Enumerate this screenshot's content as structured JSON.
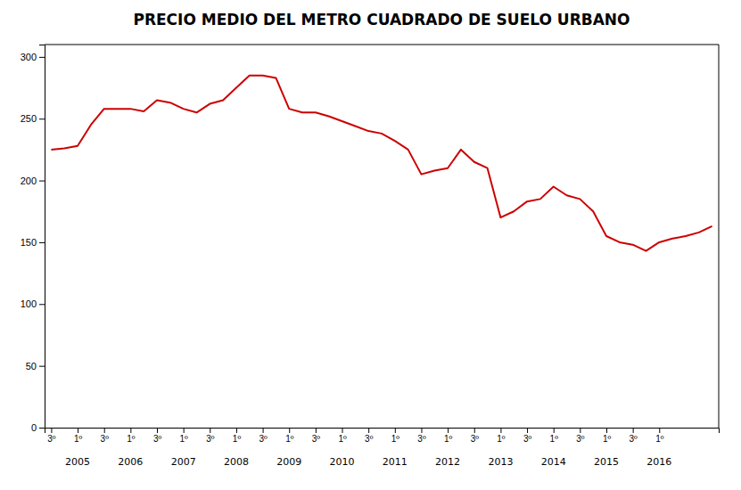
{
  "chart_data": {
    "type": "line",
    "title": "PRECIO MEDIO DEL METRO CUADRADO DE SUELO URBANO",
    "color": "#CC0000",
    "categories": [
      "3º",
      null,
      "1º",
      null,
      "3º",
      null,
      "1º",
      null,
      "3º",
      null,
      "1º",
      null,
      "3º",
      null,
      "1º",
      null,
      "3º",
      null,
      "1º",
      null,
      "3º",
      null,
      "1º",
      null,
      "3º",
      null,
      "1º",
      null,
      "3º",
      null,
      "1º",
      null,
      "3º",
      null,
      "1º",
      null,
      "3º",
      null,
      "1º",
      null,
      "3º",
      null,
      "1º",
      null,
      "3º",
      null,
      "1º",
      null,
      null,
      null,
      null
    ],
    "values": [
      225,
      226,
      228,
      245,
      258,
      258,
      258,
      256,
      265,
      263,
      258,
      255,
      262,
      265,
      275,
      285,
      285,
      283,
      258,
      255,
      255,
      252,
      248,
      244,
      240,
      238,
      232,
      225,
      205,
      208,
      210,
      225,
      215,
      210,
      170,
      175,
      183,
      185,
      195,
      188,
      185,
      175,
      155,
      150,
      148,
      143,
      150,
      153,
      155,
      158,
      163
    ],
    "ylim": [
      0,
      310
    ],
    "yticks": [
      0,
      50,
      100,
      150,
      200,
      250,
      300
    ],
    "grid": false,
    "annotations": [
      {
        "x": 2,
        "text": "2005"
      },
      {
        "x": 6,
        "text": "2006"
      },
      {
        "x": 10,
        "text": "2007"
      },
      {
        "x": 14,
        "text": "2008"
      },
      {
        "x": 18,
        "text": "2009"
      },
      {
        "x": 22,
        "text": "2010"
      },
      {
        "x": 26,
        "text": "2011"
      },
      {
        "x": 30,
        "text": "2012"
      },
      {
        "x": 34,
        "text": "2013"
      },
      {
        "x": 38,
        "text": "2014"
      },
      {
        "x": 42,
        "text": "2015"
      },
      {
        "x": 46,
        "text": "2016"
      }
    ]
  }
}
